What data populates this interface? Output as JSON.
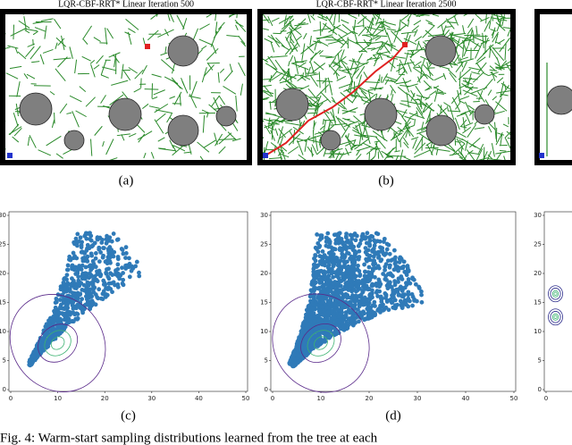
{
  "panels": [
    {
      "title": "LQR-CBF-RRT* Linear Iteration 500",
      "label": "(a)"
    },
    {
      "title": "LQR-CBF-RRT* Linear Iteration 2500",
      "label": "(b)"
    }
  ],
  "plots": [
    {
      "type": "scatter",
      "label": "(c)",
      "xlim": [
        0,
        50
      ],
      "ylim": [
        0,
        30
      ],
      "xticks": [
        0,
        10,
        20,
        30,
        40,
        50
      ],
      "yticks": [
        0,
        5,
        10,
        15,
        20,
        25,
        30
      ]
    },
    {
      "type": "scatter",
      "label": "(d)",
      "xlim": [
        0,
        50
      ],
      "ylim": [
        0,
        30
      ],
      "xticks": [
        0,
        10,
        20,
        30,
        40,
        50
      ],
      "yticks": [
        0,
        5,
        10,
        15,
        20,
        25,
        30
      ]
    },
    {
      "type": "scatter",
      "xlim": [
        0,
        50
      ],
      "ylim": [
        0,
        30
      ],
      "xticks": [
        0
      ],
      "yticks": [
        0,
        5,
        10,
        15,
        20,
        25,
        30
      ]
    }
  ],
  "caption": "Fig. 4: Warm-start sampling distributions learned from the tree at each"
}
